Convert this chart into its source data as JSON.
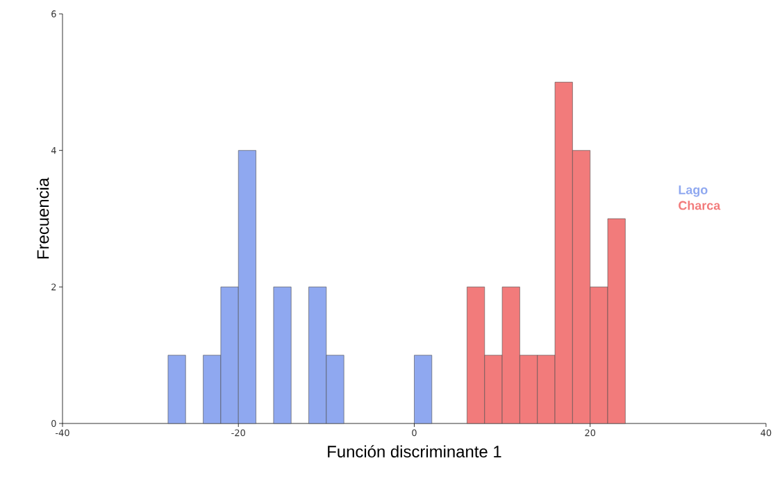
{
  "chart_data": {
    "type": "histogram",
    "xlabel": "Función discriminante 1",
    "ylabel": "Frecuencia",
    "bins": [
      -28,
      -26,
      -24,
      -22,
      -20,
      -18,
      -16,
      -14,
      -12,
      -10,
      -8,
      -6,
      -4,
      -2,
      0,
      2,
      4,
      6,
      8,
      10,
      12,
      14,
      16,
      18,
      20,
      22,
      24
    ],
    "series": [
      {
        "name": "Lago",
        "color": "#8fa8f0",
        "values": [
          1,
          0,
          1,
          2,
          4,
          0,
          2,
          0,
          2,
          1,
          0,
          0,
          0,
          0,
          1,
          0,
          0,
          0,
          0,
          0,
          0,
          0,
          0,
          0,
          0,
          0
        ]
      },
      {
        "name": "Charca",
        "color": "#f27b7b",
        "values": [
          0,
          0,
          0,
          0,
          0,
          0,
          0,
          0,
          0,
          0,
          0,
          0,
          0,
          0,
          0,
          0,
          0,
          2,
          1,
          2,
          1,
          1,
          5,
          4,
          2,
          3
        ]
      }
    ],
    "xlim": [
      -40,
      40
    ],
    "ylim": [
      0,
      6
    ],
    "xticks": [
      -40,
      -20,
      0,
      20,
      40
    ],
    "yticks": [
      0,
      2,
      4,
      6
    ],
    "grid": false,
    "legend": "right"
  }
}
